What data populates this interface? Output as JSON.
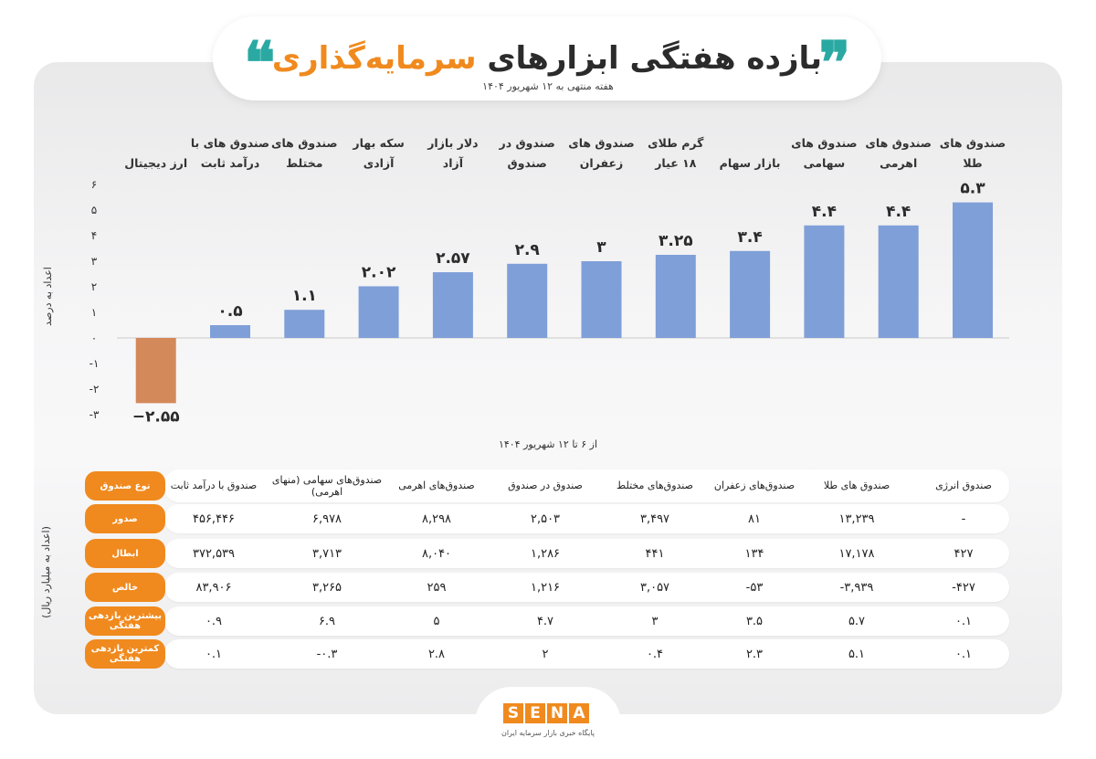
{
  "header": {
    "title_main": "بازده هفتگی ابزارهای ",
    "title_highlight": "سرمایه‌گذاری",
    "subtitle": "هفته منتهی به ۱۲ شهریور ۱۴۰۴"
  },
  "chart_data": {
    "type": "bar",
    "categories": [
      "صندوق های طلا",
      "صندوق های اهرمی",
      "صندوق های سهامی",
      "بازار سهام",
      "گرم طلای ۱۸ عیار",
      "صندوق های زعفران",
      "صندوق در صندوق",
      "دلار بازار آزاد",
      "سکه بهار آزادی",
      "صندوق های مختلط",
      "صندوق های با درآمد ثابت",
      "ارز دیجیتال"
    ],
    "values": [
      5.3,
      4.4,
      4.4,
      3.4,
      3.25,
      3,
      2.9,
      2.57,
      2.02,
      1.1,
      0.5,
      -2.55
    ],
    "value_labels": [
      "۵.۳",
      "۴.۴",
      "۴.۴",
      "۳.۴",
      "۳.۲۵",
      "۳",
      "۲.۹",
      "۲.۵۷",
      "۲.۰۲",
      "۱.۱",
      "۰.۵",
      "−۲.۵۵"
    ],
    "ylim": [
      -3,
      6
    ],
    "yticks": [
      6,
      5,
      4,
      3,
      2,
      1,
      0,
      -1,
      -2,
      -3
    ],
    "ytick_labels": [
      "۶",
      "۵",
      "۴",
      "۳",
      "۲",
      "۱",
      "۰",
      "-۱",
      "-۲",
      "-۳"
    ],
    "ylabel": "اعداد به درصد",
    "xlabel": "از ۶ تا ۱۲ شهریور ۱۴۰۴",
    "colors": {
      "positive": "#7f9fd8",
      "negative": "#d4895a"
    }
  },
  "table": {
    "side_label": "(اعداد به میلیارد ریال)",
    "corner_label": "نوع صندوق",
    "columns": [
      "صندوق انرژی",
      "صندوق های طلا",
      "صندوق‌های زعفران",
      "صندوق‌های مختلط",
      "صندوق در صندوق",
      "صندوق‌های اهرمی",
      "صندوق‌های سهامی (منهای اهرمی)",
      "صندوق با درآمد ثابت"
    ],
    "rows": [
      {
        "label": "صدور",
        "cells": [
          "-",
          "۱۳,۲۳۹",
          "۸۱",
          "۳,۴۹۷",
          "۲,۵۰۳",
          "۸,۲۹۸",
          "۶,۹۷۸",
          "۴۵۶,۴۴۶"
        ]
      },
      {
        "label": "ابطال",
        "cells": [
          "۴۲۷",
          "۱۷,۱۷۸",
          "۱۳۴",
          "۴۴۱",
          "۱,۲۸۶",
          "۸,۰۴۰",
          "۳,۷۱۳",
          "۳۷۲,۵۳۹"
        ]
      },
      {
        "label": "خالص",
        "cells": [
          "-۴۲۷",
          "-۳,۹۳۹",
          "-۵۳",
          "۳,۰۵۷",
          "۱,۲۱۶",
          "۲۵۹",
          "۳,۲۶۵",
          "۸۳,۹۰۶"
        ]
      },
      {
        "label": "بیشترین بازدهی هفتگی",
        "cells": [
          "۰.۱",
          "۵.۷",
          "۳.۵",
          "۳",
          "۴.۷",
          "۵",
          "۶.۹",
          "۰.۹"
        ]
      },
      {
        "label": "کمترین بازدهی هفتگی",
        "cells": [
          "۰.۱",
          "۵.۱",
          "۲.۳",
          "۰.۴",
          "۲",
          "۲.۸",
          "-۰.۳",
          "۰.۱"
        ]
      }
    ]
  },
  "footer": {
    "logo_letters": [
      "S",
      "E",
      "N",
      "A"
    ],
    "logo_sub": "پایگاه خبری بازار سرمایه ایران"
  }
}
